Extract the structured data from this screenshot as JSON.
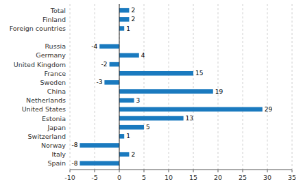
{
  "chart_data": {
    "type": "bar",
    "orientation": "horizontal",
    "categories": [
      "Spain",
      "Italy",
      "Norway",
      "Switzerland",
      "Japan",
      "Estonia",
      "United States",
      "Netherlands",
      "China",
      "Sweden",
      "France",
      "United Kingdom",
      "Germany",
      "Russia",
      null,
      "Foreign countries",
      "Finland",
      "Total"
    ],
    "values": [
      -8,
      2,
      -8,
      1,
      5,
      13,
      29,
      3,
      19,
      -3,
      15,
      -2,
      4,
      -4,
      null,
      1,
      2,
      2
    ],
    "color": "#1a7abf",
    "xlim": [
      -10,
      35
    ],
    "xticks": [
      -10,
      -5,
      0,
      5,
      10,
      15,
      20,
      25,
      30,
      35
    ],
    "grid": true,
    "data_labels": true
  }
}
